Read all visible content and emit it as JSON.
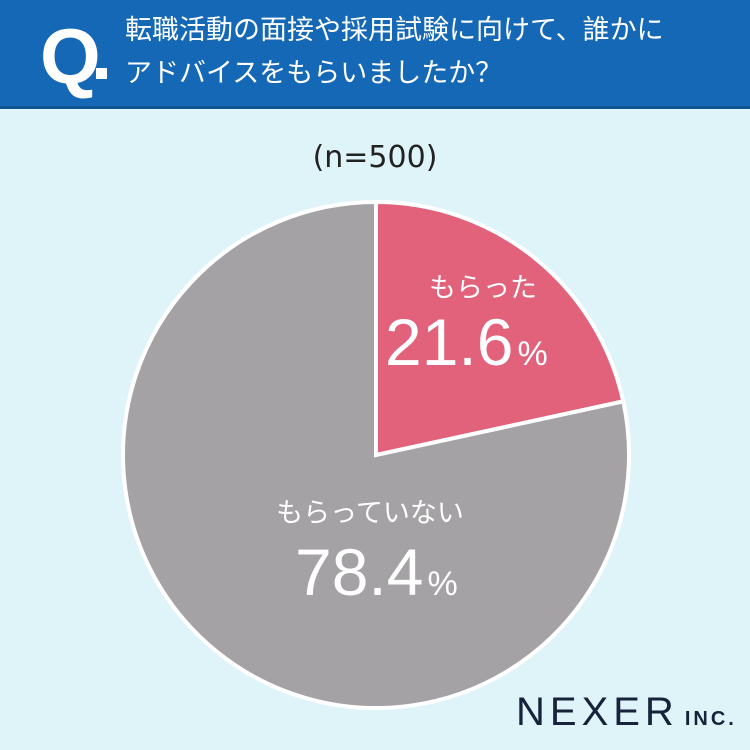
{
  "header": {
    "q": "Q",
    "line1": "転職活動の面接や採用試験に向けて、誰かに",
    "line2": "アドバイスをもらいましたか？"
  },
  "sample": "(n=500)",
  "brand": {
    "name": "NEXER",
    "suffix": "INC."
  },
  "chart_data": {
    "type": "pie",
    "title": "転職活動の面接や採用試験に向けて、誰かにアドバイスをもらいましたか？",
    "n": 500,
    "slices": [
      {
        "label": "もらった",
        "value": 21.6,
        "display": "21.6",
        "color": "#e2627b"
      },
      {
        "label": "もらっていない",
        "value": 78.4,
        "display": "78.4",
        "color": "#a4a2a4"
      }
    ],
    "unit": "%",
    "start": "top",
    "direction": "clockwise"
  }
}
